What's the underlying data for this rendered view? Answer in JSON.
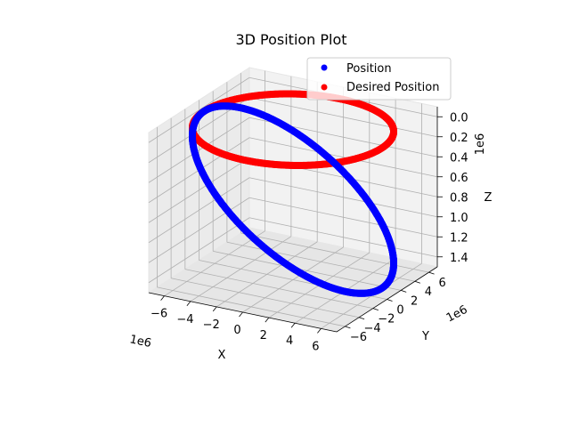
{
  "chart_data": {
    "type": "scatter",
    "projection": "3d",
    "title": "3D Position Plot",
    "xlabel": "X",
    "ylabel": "Y",
    "zlabel": "Z",
    "x_ticks": [
      6,
      4,
      2,
      0,
      -2,
      -4,
      -6
    ],
    "x_tick_labels": [
      "6",
      "4",
      "2",
      "0",
      "−2",
      "−4",
      "−6"
    ],
    "y_ticks": [
      -6,
      -4,
      -2,
      0,
      2,
      4,
      6
    ],
    "y_tick_labels": [
      "−6",
      "−4",
      "−2",
      "0",
      "2",
      "4",
      "6"
    ],
    "z_ticks": [
      0.0,
      0.2,
      0.4,
      0.6,
      0.8,
      1.0,
      1.2,
      1.4
    ],
    "z_tick_labels": [
      "0.0",
      "0.2",
      "0.4",
      "0.6",
      "0.8",
      "1.0",
      "1.2",
      "1.4"
    ],
    "x_offset_label": "1e6",
    "y_offset_label": "1e6",
    "z_offset_label": "1e6",
    "xlim": [
      -7200000,
      7200000
    ],
    "ylim": [
      -7200000,
      7200000
    ],
    "zlim": [
      1500000,
      -100000
    ],
    "z_inverted": true,
    "grid": true,
    "legend_position": "top-right",
    "series": [
      {
        "name": "Position",
        "color": "#0000ff",
        "marker": "circle",
        "shape": "tilted circular orbit",
        "center": [
          0,
          0,
          700000
        ],
        "radius": 6800000,
        "z_amplitude": 700000
      },
      {
        "name": "Desired Position",
        "color": "#ff0000",
        "marker": "circle",
        "shape": "flat circular orbit",
        "center": [
          0,
          0,
          0
        ],
        "radius": 6800000,
        "z_amplitude": 0
      }
    ]
  }
}
